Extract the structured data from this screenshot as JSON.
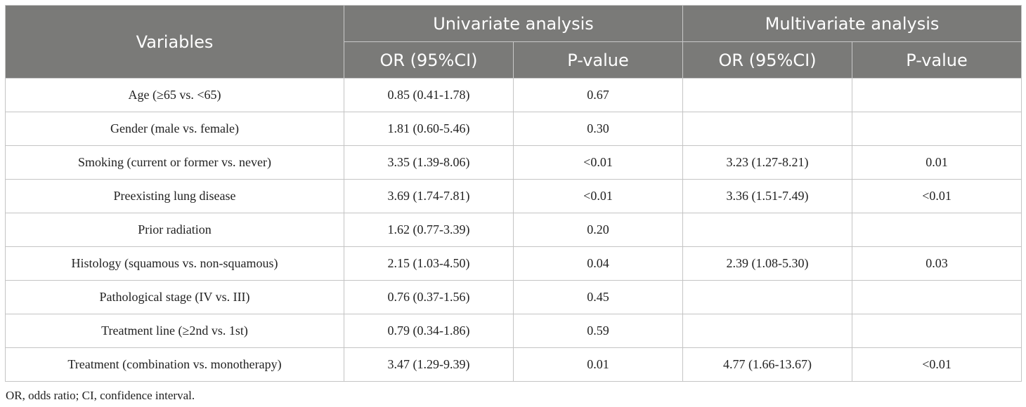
{
  "header": {
    "variables": "Variables",
    "univariate": "Univariate analysis",
    "multivariate": "Multivariate analysis",
    "or_ci": "OR (95%CI)",
    "p_value": "P-value"
  },
  "rows": [
    {
      "variable": "Age (≥65 vs. <65)",
      "uni_or": "0.85 (0.41-1.78)",
      "uni_p": "0.67",
      "multi_or": "",
      "multi_p": ""
    },
    {
      "variable": "Gender (male vs. female)",
      "uni_or": "1.81 (0.60-5.46)",
      "uni_p": "0.30",
      "multi_or": "",
      "multi_p": ""
    },
    {
      "variable": "Smoking (current or former vs. never)",
      "uni_or": "3.35 (1.39-8.06)",
      "uni_p": "<0.01",
      "multi_or": "3.23 (1.27-8.21)",
      "multi_p": "0.01"
    },
    {
      "variable": "Preexisting lung disease",
      "uni_or": "3.69 (1.74-7.81)",
      "uni_p": "<0.01",
      "multi_or": "3.36 (1.51-7.49)",
      "multi_p": "<0.01"
    },
    {
      "variable": "Prior radiation",
      "uni_or": "1.62 (0.77-3.39)",
      "uni_p": "0.20",
      "multi_or": "",
      "multi_p": ""
    },
    {
      "variable": "Histology (squamous vs. non-squamous)",
      "uni_or": "2.15 (1.03-4.50)",
      "uni_p": "0.04",
      "multi_or": "2.39 (1.08-5.30)",
      "multi_p": "0.03"
    },
    {
      "variable": "Pathological stage (IV vs. III)",
      "uni_or": "0.76 (0.37-1.56)",
      "uni_p": "0.45",
      "multi_or": "",
      "multi_p": ""
    },
    {
      "variable": "Treatment line (≥2nd vs. 1st)",
      "uni_or": "0.79 (0.34-1.86)",
      "uni_p": "0.59",
      "multi_or": "",
      "multi_p": ""
    },
    {
      "variable": "Treatment (combination vs. monotherapy)",
      "uni_or": "3.47 (1.29-9.39)",
      "uni_p": "0.01",
      "multi_or": "4.77 (1.66-13.67)",
      "multi_p": "<0.01"
    }
  ],
  "footnote": "OR, odds ratio; CI, confidence interval."
}
